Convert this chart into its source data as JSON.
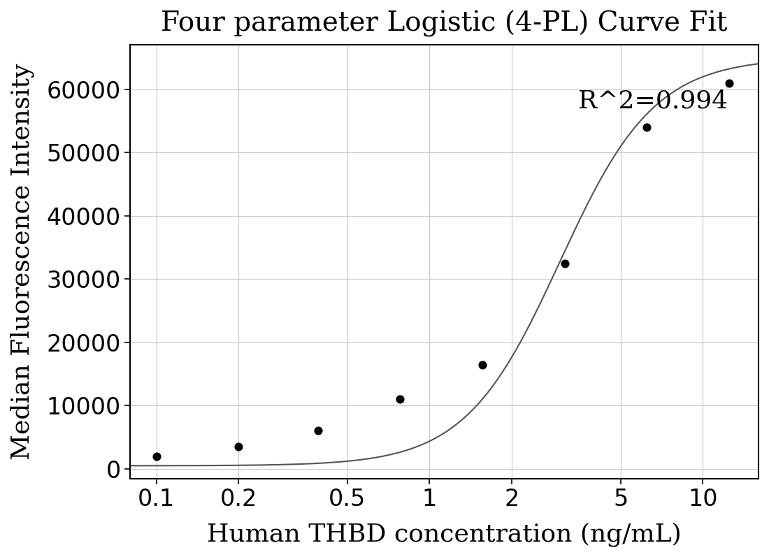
{
  "title": "Four parameter Logistic (4-PL) Curve Fit",
  "xlabel": "Human THBD concentration (ng/mL)",
  "ylabel": "Median Fluorescence Intensity",
  "r_squared": "R^2=0.994",
  "r_squared_pos_x": 3.5,
  "r_squared_pos_y": 60000,
  "data_x": [
    0.1,
    0.2,
    0.39,
    0.78,
    1.56,
    3.125,
    6.25,
    12.5
  ],
  "data_y": [
    2000,
    3500,
    6100,
    11000,
    16500,
    32500,
    54000,
    61000
  ],
  "4pl_A": 500,
  "4pl_B": 2.5,
  "4pl_C": 3.0,
  "4pl_D": 65000,
  "xlim_lo": 0.08,
  "xlim_hi": 16,
  "ylim_lo": -1500,
  "ylim_hi": 67000,
  "xticks": [
    0.1,
    0.2,
    0.5,
    1,
    2,
    5,
    10
  ],
  "xtick_labels": [
    "0.1",
    "0.2",
    "0.5",
    "1",
    "2",
    "5",
    "10"
  ],
  "yticks": [
    0,
    10000,
    20000,
    30000,
    40000,
    50000,
    60000
  ],
  "background_color": "#ffffff",
  "grid_color": "#c8c8c8",
  "line_color": "#555555",
  "dot_color": "#000000",
  "spine_color": "#000000",
  "title_fontsize": 28,
  "label_fontsize": 26,
  "tick_fontsize": 24,
  "annotation_fontsize": 26,
  "figwidth": 11.0,
  "figheight": 7.97,
  "dpi": 100
}
